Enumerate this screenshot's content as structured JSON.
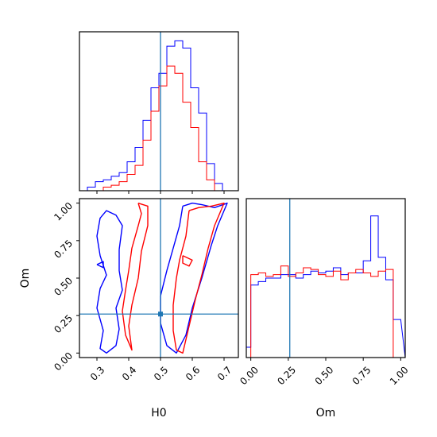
{
  "chart_data": {
    "type": "corner",
    "parameters": [
      "H0",
      "Om"
    ],
    "truths": {
      "H0": 0.5,
      "Om": 0.26
    },
    "colors": {
      "blue": "#0000ff",
      "red": "#ff0000",
      "truth": "#1f77b4"
    },
    "axes": {
      "h0": {
        "label": "H0",
        "range": [
          0.245,
          0.745
        ],
        "ticks": [
          0.3,
          0.4,
          0.5,
          0.6,
          0.7
        ],
        "tick_labels": [
          "0.3",
          "0.4",
          "0.5",
          "0.6",
          "0.7"
        ]
      },
      "om": {
        "label": "Om",
        "range": [
          -0.03,
          1.03
        ],
        "ticks": [
          0.0,
          0.25,
          0.5,
          0.75,
          1.0
        ],
        "tick_labels": [
          "0.00",
          "0.25",
          "0.50",
          "0.75",
          "1.00"
        ]
      }
    },
    "hist_h0": {
      "bin_edges": [
        0.245,
        0.27,
        0.295,
        0.32,
        0.345,
        0.37,
        0.395,
        0.42,
        0.445,
        0.47,
        0.495,
        0.52,
        0.545,
        0.57,
        0.595,
        0.62,
        0.645,
        0.67,
        0.695,
        0.72,
        0.745
      ],
      "series": [
        {
          "color": "blue",
          "values": [
            0.0,
            0.02,
            0.05,
            0.06,
            0.08,
            0.1,
            0.16,
            0.24,
            0.39,
            0.57,
            0.65,
            0.8,
            0.83,
            0.79,
            0.57,
            0.43,
            0.15,
            0.04,
            0.0,
            0.0
          ]
        },
        {
          "color": "red",
          "values": [
            0.0,
            0.0,
            0.0,
            0.02,
            0.03,
            0.05,
            0.09,
            0.14,
            0.28,
            0.44,
            0.58,
            0.69,
            0.65,
            0.49,
            0.35,
            0.16,
            0.06,
            0.0,
            0.0,
            0.0
          ]
        }
      ]
    },
    "hist_om": {
      "bin_edges": [
        -0.03,
        0.0,
        0.05,
        0.1,
        0.15,
        0.2,
        0.25,
        0.3,
        0.35,
        0.4,
        0.45,
        0.5,
        0.55,
        0.6,
        0.65,
        0.7,
        0.75,
        0.8,
        0.85,
        0.9,
        0.95,
        1.0,
        1.03
      ],
      "series": [
        {
          "color": "blue",
          "values": [
            0.06,
            0.42,
            0.44,
            0.46,
            0.46,
            0.48,
            0.48,
            0.46,
            0.48,
            0.5,
            0.49,
            0.5,
            0.52,
            0.48,
            0.49,
            0.49,
            0.56,
            0.82,
            0.58,
            0.45,
            0.22
          ]
        },
        {
          "color": "red",
          "values": [
            0.0,
            0.48,
            0.49,
            0.47,
            0.48,
            0.53,
            0.47,
            0.49,
            0.52,
            0.51,
            0.48,
            0.47,
            0.5,
            0.45,
            0.49,
            0.51,
            0.49,
            0.47,
            0.5,
            0.51,
            0.0
          ]
        }
      ]
    },
    "contours": [
      {
        "color": "blue",
        "points": [
          [
            0.37,
            0.69
          ],
          [
            0.38,
            0.85
          ],
          [
            0.36,
            0.92
          ],
          [
            0.33,
            0.95
          ],
          [
            0.31,
            0.9
          ],
          [
            0.3,
            0.78
          ],
          [
            0.31,
            0.65
          ],
          [
            0.33,
            0.52
          ],
          [
            0.31,
            0.43
          ],
          [
            0.3,
            0.3
          ],
          [
            0.32,
            0.15
          ],
          [
            0.31,
            0.03
          ],
          [
            0.33,
            0.0
          ],
          [
            0.36,
            0.05
          ],
          [
            0.37,
            0.16
          ],
          [
            0.36,
            0.3
          ],
          [
            0.38,
            0.42
          ],
          [
            0.37,
            0.55
          ],
          [
            0.37,
            0.69
          ]
        ]
      },
      {
        "color": "blue",
        "points": [
          [
            0.57,
            0.98
          ],
          [
            0.56,
            0.85
          ],
          [
            0.54,
            0.7
          ],
          [
            0.52,
            0.55
          ],
          [
            0.5,
            0.38
          ],
          [
            0.5,
            0.2
          ],
          [
            0.52,
            0.05
          ],
          [
            0.55,
            0.0
          ],
          [
            0.58,
            0.12
          ],
          [
            0.6,
            0.3
          ],
          [
            0.63,
            0.5
          ],
          [
            0.66,
            0.72
          ],
          [
            0.68,
            0.85
          ],
          [
            0.71,
            1.0
          ],
          [
            0.67,
            0.97
          ],
          [
            0.63,
            0.99
          ],
          [
            0.6,
            1.0
          ],
          [
            0.57,
            0.98
          ]
        ]
      },
      {
        "color": "blue",
        "points": [
          [
            0.3,
            0.59
          ],
          [
            0.32,
            0.61
          ],
          [
            0.32,
            0.57
          ],
          [
            0.3,
            0.59
          ]
        ]
      },
      {
        "color": "red",
        "points": [
          [
            0.43,
            1.0
          ],
          [
            0.44,
            0.93
          ],
          [
            0.43,
            0.85
          ],
          [
            0.41,
            0.7
          ],
          [
            0.4,
            0.55
          ],
          [
            0.39,
            0.42
          ],
          [
            0.38,
            0.28
          ],
          [
            0.39,
            0.12
          ],
          [
            0.41,
            0.02
          ],
          [
            0.4,
            0.18
          ],
          [
            0.41,
            0.32
          ],
          [
            0.43,
            0.5
          ],
          [
            0.44,
            0.68
          ],
          [
            0.46,
            0.85
          ],
          [
            0.46,
            0.98
          ],
          [
            0.43,
            1.0
          ]
        ]
      },
      {
        "color": "red",
        "points": [
          [
            0.59,
            0.95
          ],
          [
            0.58,
            0.78
          ],
          [
            0.56,
            0.62
          ],
          [
            0.55,
            0.5
          ],
          [
            0.54,
            0.32
          ],
          [
            0.54,
            0.15
          ],
          [
            0.55,
            0.02
          ],
          [
            0.57,
            0.0
          ],
          [
            0.59,
            0.18
          ],
          [
            0.61,
            0.36
          ],
          [
            0.63,
            0.52
          ],
          [
            0.65,
            0.7
          ],
          [
            0.67,
            0.85
          ],
          [
            0.7,
            1.0
          ],
          [
            0.66,
            0.98
          ],
          [
            0.62,
            0.97
          ],
          [
            0.59,
            0.95
          ]
        ]
      },
      {
        "color": "red",
        "points": [
          [
            0.57,
            0.65
          ],
          [
            0.6,
            0.62
          ],
          [
            0.59,
            0.58
          ],
          [
            0.57,
            0.6
          ],
          [
            0.57,
            0.65
          ]
        ]
      }
    ]
  }
}
